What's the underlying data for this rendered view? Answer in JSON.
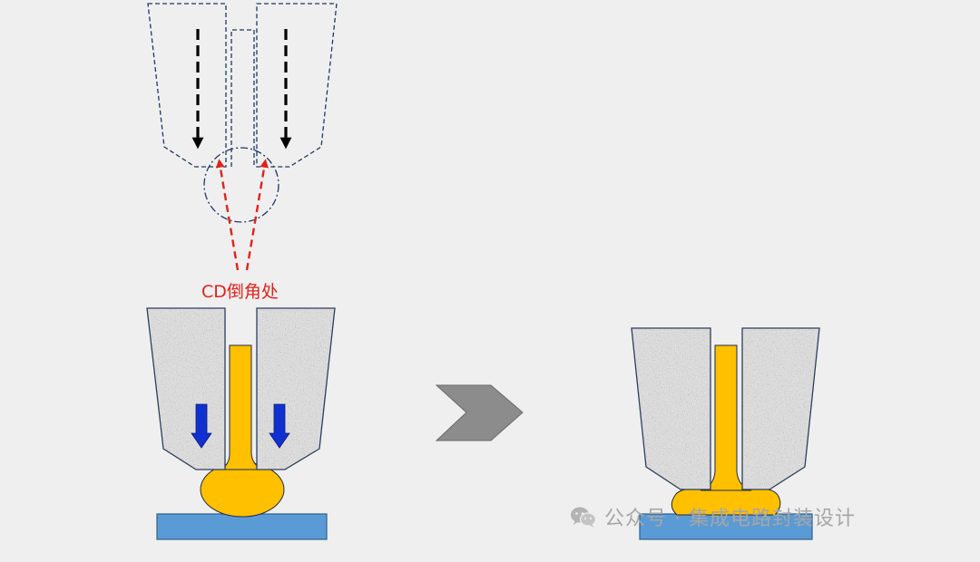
{
  "labels": {
    "chamfer": "CD倒角处"
  },
  "watermark": {
    "icon": "wechat-icon",
    "text": "公众号 · 集成电路封装设计"
  },
  "colors": {
    "background": "#efefef",
    "outline_dash": "#1f3864",
    "arrow_black": "#000000",
    "arrow_red": "#e0231c",
    "arrow_blue": "#1030d0",
    "capillary_fill": "#a9a9a9",
    "capillary_edge": "#2d3e5c",
    "wire_gold": "#ffc000",
    "wire_edge": "#b58600",
    "pad_blue": "#5b9bd5",
    "pad_edge": "#2e5f8a",
    "chevron_gray": "#8c8c8c",
    "watermark": "#a6a6a6"
  }
}
